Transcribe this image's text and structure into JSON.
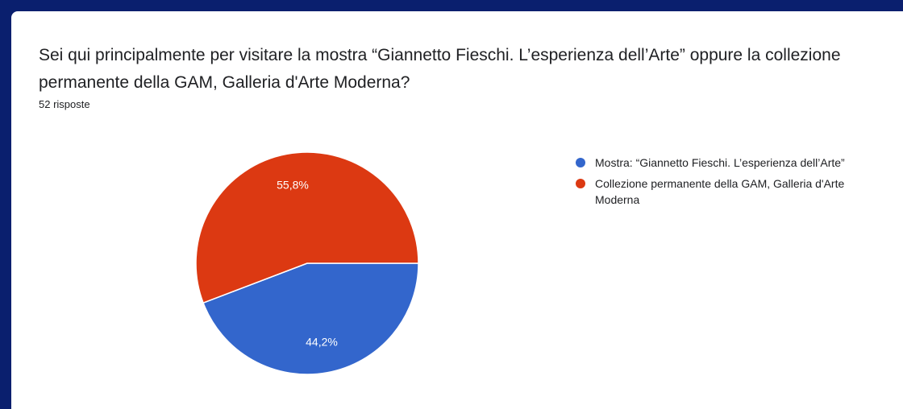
{
  "question": {
    "title": "Sei qui principalmente per visitare la mostra “Giannetto Fieschi. L’esperienza dell’Arte” oppure la collezione permanente della GAM, Galleria d'Arte Moderna?",
    "responses": "52 risposte"
  },
  "chart_data": {
    "type": "pie",
    "title": "",
    "slices": [
      {
        "label": "Mostra: “Giannetto Fieschi. L’esperienza dell’Arte”",
        "value": 44.2,
        "display": "44,2%",
        "color": "#3366cc"
      },
      {
        "label": "Collezione permanente della GAM, Galleria d'Arte Moderna",
        "value": 55.8,
        "display": "55,8%",
        "color": "#dc3912"
      }
    ],
    "legend_position": "right"
  },
  "legend": {
    "items": [
      {
        "label": "Mostra: “Giannetto Fieschi. L’esperienza dell’Arte”",
        "color": "#3366cc"
      },
      {
        "label": "Collezione permanente della GAM, Galleria d'Arte Moderna",
        "color": "#dc3912"
      }
    ]
  }
}
